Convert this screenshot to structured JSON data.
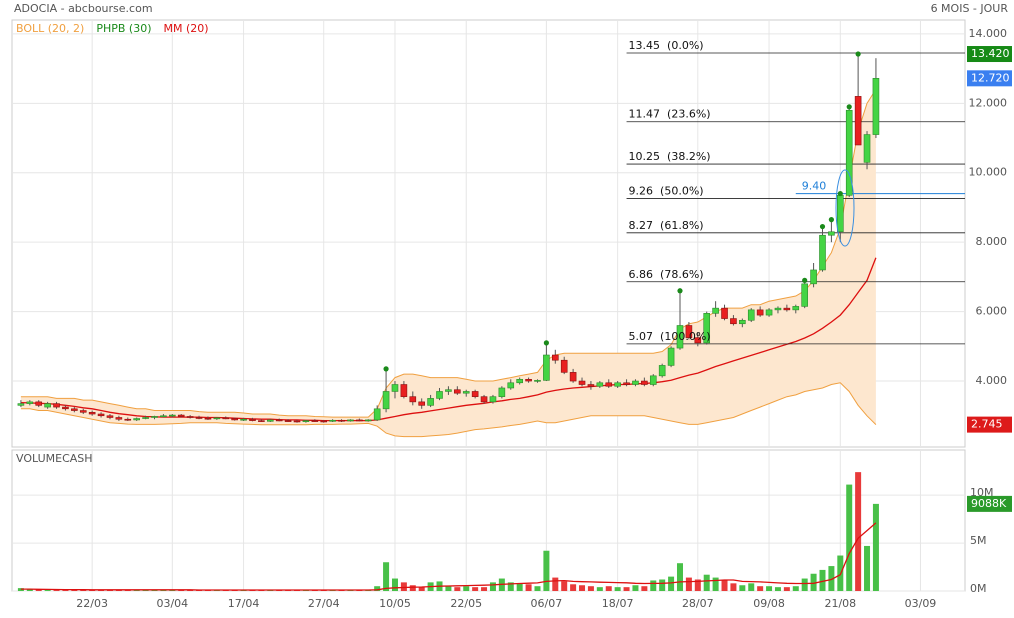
{
  "header": {
    "title": "ADOCIA - abcbourse.com",
    "period": "6 MOIS - JOUR"
  },
  "chart_data": [
    {
      "type": "candlestick",
      "xlim": [
        -1,
        106
      ],
      "ylim": [
        2.1,
        14.4
      ],
      "yticks": [
        {
          "value": 4,
          "label": "4.000"
        },
        {
          "value": 6,
          "label": "6.000"
        },
        {
          "value": 8,
          "label": "8.000"
        },
        {
          "value": 10,
          "label": "10.000"
        },
        {
          "value": 12,
          "label": "12.000"
        },
        {
          "value": 14,
          "label": "14.000"
        }
      ],
      "grid": true,
      "up_color": "#44d444",
      "down_color": "#e82020",
      "candles": [
        [
          3.3,
          3.45,
          3.25,
          3.35
        ],
        [
          3.35,
          3.45,
          3.3,
          3.4
        ],
        [
          3.4,
          3.45,
          3.25,
          3.3
        ],
        [
          3.25,
          3.4,
          3.2,
          3.35
        ],
        [
          3.35,
          3.4,
          3.2,
          3.25
        ],
        [
          3.25,
          3.3,
          3.15,
          3.2
        ],
        [
          3.2,
          3.25,
          3.1,
          3.15
        ],
        [
          3.15,
          3.2,
          3.05,
          3.1
        ],
        [
          3.1,
          3.15,
          3.0,
          3.05
        ],
        [
          3.05,
          3.1,
          2.95,
          3.0
        ],
        [
          3.0,
          3.05,
          2.9,
          2.95
        ],
        [
          2.95,
          3.0,
          2.85,
          2.9
        ],
        [
          2.9,
          2.95,
          2.85,
          2.88
        ],
        [
          2.88,
          2.95,
          2.85,
          2.92
        ],
        [
          2.92,
          3.0,
          2.9,
          2.95
        ],
        [
          2.95,
          3.0,
          2.9,
          2.98
        ],
        [
          2.98,
          3.05,
          2.95,
          3.0
        ],
        [
          3.0,
          3.05,
          2.95,
          3.02
        ],
        [
          3.02,
          3.05,
          2.95,
          2.98
        ],
        [
          2.98,
          3.02,
          2.92,
          2.95
        ],
        [
          2.95,
          3.0,
          2.9,
          2.93
        ],
        [
          2.93,
          2.98,
          2.88,
          2.92
        ],
        [
          2.92,
          2.96,
          2.88,
          2.94
        ],
        [
          2.94,
          2.98,
          2.9,
          2.92
        ],
        [
          2.92,
          2.95,
          2.86,
          2.88
        ],
        [
          2.88,
          2.94,
          2.85,
          2.9
        ],
        [
          2.9,
          2.94,
          2.84,
          2.86
        ],
        [
          2.86,
          2.9,
          2.82,
          2.84
        ],
        [
          2.84,
          2.9,
          2.82,
          2.88
        ],
        [
          2.88,
          2.92,
          2.84,
          2.86
        ],
        [
          2.86,
          2.9,
          2.82,
          2.85
        ],
        [
          2.85,
          2.88,
          2.8,
          2.83
        ],
        [
          2.83,
          2.88,
          2.8,
          2.86
        ],
        [
          2.86,
          2.9,
          2.82,
          2.85
        ],
        [
          2.85,
          2.88,
          2.8,
          2.84
        ],
        [
          2.84,
          2.9,
          2.82,
          2.87
        ],
        [
          2.87,
          2.9,
          2.82,
          2.85
        ],
        [
          2.85,
          2.9,
          2.83,
          2.88
        ],
        [
          2.88,
          2.92,
          2.84,
          2.86
        ],
        [
          2.86,
          2.9,
          2.83,
          2.88
        ],
        [
          2.88,
          3.3,
          2.85,
          3.2
        ],
        [
          3.2,
          4.35,
          3.1,
          3.7
        ],
        [
          3.7,
          4.0,
          3.5,
          3.9
        ],
        [
          3.9,
          4.0,
          3.5,
          3.55
        ],
        [
          3.55,
          3.7,
          3.3,
          3.4
        ],
        [
          3.4,
          3.5,
          3.2,
          3.3
        ],
        [
          3.3,
          3.6,
          3.25,
          3.5
        ],
        [
          3.5,
          3.8,
          3.45,
          3.7
        ],
        [
          3.7,
          3.85,
          3.6,
          3.75
        ],
        [
          3.75,
          3.85,
          3.6,
          3.65
        ],
        [
          3.65,
          3.75,
          3.55,
          3.7
        ],
        [
          3.7,
          3.75,
          3.5,
          3.55
        ],
        [
          3.55,
          3.6,
          3.35,
          3.4
        ],
        [
          3.4,
          3.6,
          3.35,
          3.55
        ],
        [
          3.55,
          3.85,
          3.5,
          3.8
        ],
        [
          3.8,
          4.05,
          3.75,
          3.95
        ],
        [
          3.95,
          4.1,
          3.9,
          4.05
        ],
        [
          4.05,
          4.1,
          3.95,
          4.0
        ],
        [
          4.0,
          4.05,
          3.95,
          4.02
        ],
        [
          4.02,
          5.1,
          4.0,
          4.75
        ],
        [
          4.75,
          4.9,
          4.5,
          4.6
        ],
        [
          4.6,
          4.7,
          4.2,
          4.25
        ],
        [
          4.25,
          4.35,
          3.95,
          4.0
        ],
        [
          4.0,
          4.1,
          3.85,
          3.9
        ],
        [
          3.9,
          4.0,
          3.75,
          3.85
        ],
        [
          3.85,
          4.0,
          3.8,
          3.95
        ],
        [
          3.95,
          4.05,
          3.8,
          3.85
        ],
        [
          3.85,
          4.0,
          3.8,
          3.95
        ],
        [
          3.95,
          4.05,
          3.85,
          3.9
        ],
        [
          3.9,
          4.05,
          3.85,
          4.0
        ],
        [
          4.0,
          4.1,
          3.85,
          3.9
        ],
        [
          3.9,
          4.2,
          3.85,
          4.15
        ],
        [
          4.15,
          4.5,
          4.1,
          4.45
        ],
        [
          4.45,
          5.0,
          4.4,
          4.95
        ],
        [
          4.95,
          6.6,
          4.9,
          5.6
        ],
        [
          5.6,
          5.7,
          5.2,
          5.25
        ],
        [
          5.25,
          5.4,
          5.0,
          5.1
        ],
        [
          5.1,
          6.0,
          5.05,
          5.95
        ],
        [
          5.95,
          6.3,
          5.85,
          6.1
        ],
        [
          6.1,
          6.2,
          5.75,
          5.8
        ],
        [
          5.8,
          5.9,
          5.6,
          5.65
        ],
        [
          5.65,
          5.8,
          5.55,
          5.75
        ],
        [
          5.75,
          6.1,
          5.7,
          6.05
        ],
        [
          6.05,
          6.15,
          5.85,
          5.9
        ],
        [
          5.9,
          6.1,
          5.85,
          6.05
        ],
        [
          6.05,
          6.15,
          5.95,
          6.1
        ],
        [
          6.1,
          6.2,
          6.0,
          6.05
        ],
        [
          6.05,
          6.2,
          5.95,
          6.15
        ],
        [
          6.15,
          6.9,
          6.1,
          6.8
        ],
        [
          6.8,
          7.4,
          6.7,
          7.2
        ],
        [
          7.2,
          8.45,
          7.15,
          8.2
        ],
        [
          8.2,
          8.65,
          8.0,
          8.3
        ],
        [
          8.3,
          9.4,
          8.0,
          9.35
        ],
        [
          9.35,
          11.9,
          9.3,
          11.8
        ],
        [
          12.2,
          13.42,
          10.8,
          10.8
        ],
        [
          10.3,
          11.2,
          10.1,
          11.1
        ],
        [
          11.1,
          13.3,
          11.0,
          12.72
        ]
      ],
      "indicators": [
        {
          "name": "BOLL (20, 2)",
          "color": "#f0a040",
          "fill": "#fde7cf",
          "upper": [
            3.55,
            3.55,
            3.55,
            3.55,
            3.5,
            3.5,
            3.5,
            3.45,
            3.45,
            3.4,
            3.35,
            3.3,
            3.25,
            3.2,
            3.2,
            3.15,
            3.15,
            3.15,
            3.15,
            3.15,
            3.12,
            3.1,
            3.1,
            3.1,
            3.1,
            3.08,
            3.05,
            3.05,
            3.05,
            3.02,
            3.0,
            3.0,
            3.0,
            2.98,
            2.97,
            2.96,
            2.96,
            2.96,
            2.96,
            2.96,
            3.2,
            3.8,
            4.1,
            4.2,
            4.2,
            4.15,
            4.1,
            4.1,
            4.1,
            4.1,
            4.05,
            4.0,
            4.0,
            4.0,
            4.05,
            4.1,
            4.15,
            4.2,
            4.25,
            4.6,
            4.75,
            4.8,
            4.8,
            4.8,
            4.8,
            4.8,
            4.8,
            4.8,
            4.8,
            4.8,
            4.8,
            4.8,
            4.85,
            5.05,
            5.5,
            5.65,
            5.7,
            5.85,
            6.0,
            6.1,
            6.1,
            6.1,
            6.2,
            6.2,
            6.3,
            6.35,
            6.4,
            6.45,
            6.6,
            6.9,
            7.3,
            7.7,
            8.4,
            9.8,
            11.2,
            12.0,
            12.4
          ],
          "lower": [
            3.2,
            3.2,
            3.15,
            3.15,
            3.1,
            3.05,
            3.0,
            2.95,
            2.9,
            2.85,
            2.8,
            2.78,
            2.76,
            2.75,
            2.75,
            2.75,
            2.76,
            2.77,
            2.78,
            2.8,
            2.8,
            2.8,
            2.8,
            2.78,
            2.77,
            2.76,
            2.75,
            2.74,
            2.74,
            2.74,
            2.74,
            2.74,
            2.74,
            2.75,
            2.75,
            2.75,
            2.76,
            2.76,
            2.77,
            2.78,
            2.7,
            2.5,
            2.42,
            2.4,
            2.4,
            2.4,
            2.42,
            2.44,
            2.46,
            2.5,
            2.55,
            2.6,
            2.62,
            2.65,
            2.68,
            2.72,
            2.75,
            2.8,
            2.85,
            2.8,
            2.8,
            2.85,
            2.9,
            2.95,
            3.0,
            3.0,
            3.0,
            3.0,
            3.0,
            3.0,
            3.0,
            2.95,
            2.9,
            2.85,
            2.8,
            2.75,
            2.75,
            2.8,
            2.85,
            2.9,
            2.95,
            3.05,
            3.15,
            3.25,
            3.35,
            3.45,
            3.55,
            3.6,
            3.7,
            3.75,
            3.8,
            3.9,
            3.95,
            3.7,
            3.3,
            3.0,
            2.745
          ]
        },
        {
          "name": "PHPB (30)",
          "color": "#1a8a1a",
          "points": [
            41,
            59,
            74,
            88,
            90,
            91,
            92,
            93,
            94
          ]
        },
        {
          "name": "MM (20)",
          "color": "#dd1010",
          "values": [
            3.38,
            3.37,
            3.36,
            3.35,
            3.33,
            3.3,
            3.27,
            3.23,
            3.2,
            3.15,
            3.1,
            3.06,
            3.03,
            3.0,
            2.98,
            2.97,
            2.96,
            2.96,
            2.96,
            2.96,
            2.96,
            2.95,
            2.95,
            2.94,
            2.93,
            2.92,
            2.91,
            2.9,
            2.9,
            2.89,
            2.88,
            2.88,
            2.87,
            2.87,
            2.86,
            2.86,
            2.86,
            2.86,
            2.86,
            2.86,
            2.88,
            2.93,
            2.98,
            3.03,
            3.07,
            3.1,
            3.14,
            3.18,
            3.22,
            3.26,
            3.3,
            3.33,
            3.36,
            3.4,
            3.43,
            3.47,
            3.5,
            3.55,
            3.6,
            3.68,
            3.73,
            3.77,
            3.8,
            3.82,
            3.84,
            3.86,
            3.88,
            3.9,
            3.9,
            3.92,
            3.93,
            3.95,
            3.98,
            4.02,
            4.1,
            4.17,
            4.23,
            4.32,
            4.42,
            4.5,
            4.58,
            4.66,
            4.74,
            4.82,
            4.9,
            4.98,
            5.06,
            5.14,
            5.24,
            5.36,
            5.52,
            5.7,
            5.9,
            6.2,
            6.55,
            6.9,
            7.55
          ]
        }
      ],
      "fib_levels": [
        {
          "value": 13.45,
          "label": "13.45  (0.0%)"
        },
        {
          "value": 11.47,
          "label": "11.47  (23.6%)"
        },
        {
          "value": 10.25,
          "label": "10.25  (38.2%)"
        },
        {
          "value": 9.26,
          "label": "9.26  (50.0%)"
        },
        {
          "value": 8.27,
          "label": "8.27  (61.8%)"
        },
        {
          "value": 6.86,
          "label": "6.86  (78.6%)"
        },
        {
          "value": 5.07,
          "label": "5.07  (100.0%)"
        }
      ],
      "marker_line": {
        "value": 9.4,
        "label": "9.40",
        "color": "#1e7fd8"
      },
      "badges": [
        {
          "value": 13.42,
          "label": "13.420",
          "color": "#168a16"
        },
        {
          "value": 12.72,
          "label": "12.720",
          "color": "#3a7ff0"
        },
        {
          "value": 2.745,
          "label": "2.745",
          "color": "#dd1a1a"
        }
      ]
    },
    {
      "type": "bar",
      "title": "VOLUMECASH",
      "xlim": [
        -1,
        106
      ],
      "xticks": [
        {
          "value": 8,
          "label": "22/03"
        },
        {
          "value": 17,
          "label": "03/04"
        },
        {
          "value": 25,
          "label": "17/04"
        },
        {
          "value": 34,
          "label": "27/04"
        },
        {
          "value": 42,
          "label": "10/05"
        },
        {
          "value": 50,
          "label": "22/05"
        },
        {
          "value": 59,
          "label": "06/07"
        },
        {
          "value": 67,
          "label": "18/07"
        },
        {
          "value": 76,
          "label": "28/07"
        },
        {
          "value": 84,
          "label": "09/08"
        },
        {
          "value": 92,
          "label": "21/08"
        },
        {
          "value": 101,
          "label": "03/09"
        }
      ],
      "ylim": [
        0,
        14.5
      ],
      "yticks": [
        {
          "value": 0,
          "label": "0M"
        },
        {
          "value": 5,
          "label": "5M"
        },
        {
          "value": 10,
          "label": "10M"
        }
      ],
      "grid": true,
      "values": [
        0.3,
        0.2,
        0.15,
        0.1,
        0.1,
        0.1,
        0.15,
        0.1,
        0.1,
        0.1,
        0.1,
        0.1,
        0.1,
        0.1,
        0.1,
        0.1,
        0.1,
        0.1,
        0.1,
        0.1,
        0.1,
        0.1,
        0.1,
        0.1,
        0.1,
        0.1,
        0.1,
        0.1,
        0.1,
        0.1,
        0.1,
        0.1,
        0.1,
        0.1,
        0.1,
        0.1,
        0.1,
        0.1,
        0.1,
        0.1,
        0.5,
        3.0,
        1.3,
        0.9,
        0.6,
        0.4,
        0.9,
        1.0,
        0.5,
        0.4,
        0.5,
        0.4,
        0.4,
        0.9,
        1.3,
        0.9,
        0.8,
        0.7,
        0.5,
        4.2,
        1.4,
        1.0,
        0.7,
        0.6,
        0.5,
        0.4,
        0.5,
        0.4,
        0.4,
        0.6,
        0.5,
        1.1,
        1.2,
        1.5,
        2.9,
        1.4,
        1.2,
        1.7,
        1.4,
        1.1,
        0.8,
        0.6,
        0.8,
        0.5,
        0.5,
        0.4,
        0.4,
        0.5,
        1.3,
        1.8,
        2.2,
        2.6,
        3.7,
        11.1,
        12.4,
        4.7,
        9.088
      ],
      "ma_color": "#dd1010",
      "ma_values": [
        0.2,
        0.2,
        0.18,
        0.17,
        0.16,
        0.15,
        0.15,
        0.14,
        0.13,
        0.13,
        0.12,
        0.12,
        0.12,
        0.12,
        0.12,
        0.12,
        0.12,
        0.12,
        0.12,
        0.12,
        0.1,
        0.1,
        0.1,
        0.1,
        0.1,
        0.1,
        0.1,
        0.1,
        0.1,
        0.1,
        0.1,
        0.1,
        0.1,
        0.1,
        0.1,
        0.1,
        0.1,
        0.1,
        0.1,
        0.1,
        0.12,
        0.27,
        0.33,
        0.37,
        0.4,
        0.42,
        0.46,
        0.5,
        0.52,
        0.54,
        0.56,
        0.58,
        0.6,
        0.64,
        0.7,
        0.74,
        0.78,
        0.81,
        0.84,
        1.0,
        1.05,
        1.08,
        1.0,
        0.97,
        0.95,
        0.92,
        0.9,
        0.88,
        0.86,
        0.8,
        0.78,
        0.79,
        0.8,
        0.85,
        0.95,
        0.98,
        1.0,
        1.05,
        1.1,
        1.15,
        1.15,
        1.0,
        0.98,
        0.95,
        0.9,
        0.85,
        0.8,
        0.78,
        0.78,
        0.8,
        1.0,
        1.2,
        1.7,
        3.9,
        5.5,
        6.3,
        7.1
      ],
      "badges": [
        {
          "value": 9.088,
          "label": "9088K",
          "color": "#2a9a2a"
        }
      ]
    }
  ]
}
